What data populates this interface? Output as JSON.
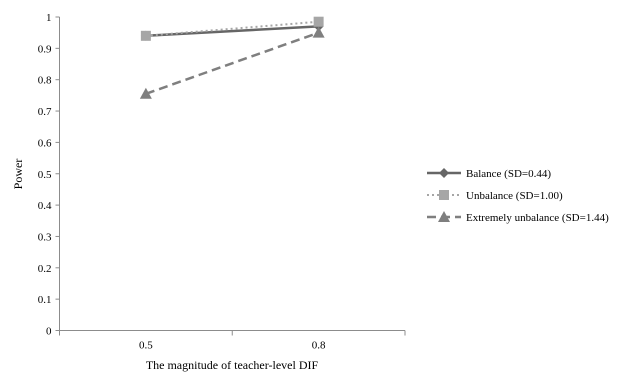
{
  "chart_data": {
    "type": "line",
    "title": "",
    "xlabel": "The magnitude of teacher-level DIF",
    "ylabel": "Power",
    "categories": [
      "0.5",
      "0.8"
    ],
    "ylim": [
      0,
      1
    ],
    "yticks": [
      "0",
      "0.1",
      "0.2",
      "0.3",
      "0.4",
      "0.5",
      "0.6",
      "0.7",
      "0.8",
      "0.9",
      "1"
    ],
    "grid": false,
    "legend_position": "right",
    "series": [
      {
        "name": "Balance (SD=0.44)",
        "values": [
          0.94,
          0.97
        ],
        "color": "#666666",
        "line_style": "solid",
        "marker": "diamond"
      },
      {
        "name": "Unbalance (SD=1.00)",
        "values": [
          0.94,
          0.985
        ],
        "color": "#a6a6a6",
        "line_style": "dotted",
        "marker": "square"
      },
      {
        "name": "Extremely unbalance (SD=1.44)",
        "values": [
          0.755,
          0.95
        ],
        "color": "#7f7f7f",
        "line_style": "dashed",
        "marker": "triangle"
      }
    ]
  }
}
